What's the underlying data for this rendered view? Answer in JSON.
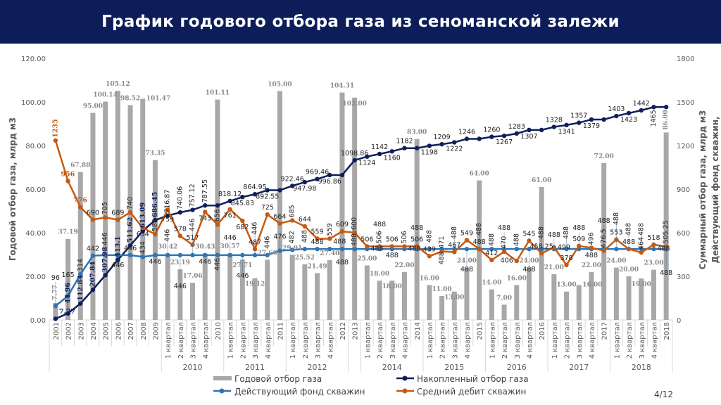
{
  "header": {
    "title": "График годового отбора газа из сеноманской залежи"
  },
  "page_number": "4/12",
  "colors": {
    "header": "#0c1d5a",
    "bars": "#a9a7a7",
    "cumulative": "#0e1f5b",
    "wells": "#2e75b6",
    "debit": "#c55a11"
  },
  "chart_data": {
    "type": "bar",
    "title": "График годового отбора газа из сеноманской залежи",
    "ylabel": "Годовой отбор газа, млрд м3",
    "y2label": "Суммарный отбор газа, млрд м3",
    "y3label": "Действующий фонд скважин,",
    "ylim": [
      0,
      120
    ],
    "y2lim": [
      0,
      1800
    ],
    "yticks": [
      "0.00",
      "20.00",
      "40.00",
      "60.00",
      "80.00",
      "100.00",
      "120.00"
    ],
    "y2ticks": [
      "0",
      "300",
      "600",
      "900",
      "1200",
      "1500",
      "1800"
    ],
    "categories": [
      "2001",
      "2002",
      "2003",
      "2004",
      "2005",
      "2006",
      "2007",
      "2008",
      "2009",
      "1 квартал",
      "2 квартал",
      "3 квартал",
      "4 квартал",
      "2010",
      "1 квартал",
      "2 квартал",
      "3 квартал",
      "4 квартал",
      "2011",
      "1 квартал",
      "2 квартал",
      "3 квартал",
      "4 квартал",
      "2012",
      "2013",
      "1 квартал",
      "2 квартал",
      "3 квартал",
      "4 квартал",
      "2014",
      "1 квартал",
      "2 квартал",
      "3 квартал",
      "4 квартал",
      "2015",
      "1 квартал",
      "2 квартал",
      "3 квартал",
      "4 квартал",
      "2016",
      "1 квартал",
      "2 квартал",
      "3 квартал",
      "4 квартал",
      "2017",
      "1 квартал",
      "2 квартал",
      "3 квартал",
      "4 квартал",
      "2018"
    ],
    "groups": [
      {
        "label": "2010",
        "start": 9,
        "end": 13
      },
      {
        "label": "2011",
        "start": 14,
        "end": 18
      },
      {
        "label": "2012",
        "start": 19,
        "end": 23
      },
      {
        "label": "2014",
        "start": 25,
        "end": 29
      },
      {
        "label": "2015",
        "start": 30,
        "end": 34
      },
      {
        "label": "2016",
        "start": 35,
        "end": 39
      },
      {
        "label": "2017",
        "start": 40,
        "end": 44
      },
      {
        "label": "2018",
        "start": 45,
        "end": 49
      }
    ],
    "legend_position": "bottom",
    "series": [
      {
        "name": "Годовой отбор газа",
        "type": "bar",
        "axis": "left",
        "values": [
          7.77,
          37.19,
          67.88,
          95.0,
          100.14,
          105.12,
          98.52,
          101.47,
          73.35,
          30.42,
          23.19,
          17.06,
          30.43,
          101.11,
          30.57,
          27.71,
          19.12,
          27.6,
          105.0,
          29.91,
          25.52,
          21.49,
          27.4,
          104.31,
          102.0,
          25.0,
          18.0,
          18.0,
          22.0,
          83.0,
          16.0,
          11.0,
          13.0,
          24.0,
          64.0,
          14.0,
          7.0,
          16.0,
          24.0,
          61.0,
          21.0,
          13.0,
          16.0,
          22.0,
          72.0,
          24.0,
          20.0,
          19.0,
          23.0,
          86.0
        ]
      },
      {
        "name": "Накопленный отбор газа",
        "type": "line",
        "axis": "right",
        "values": [
          7.77,
          44.96,
          112.84,
          207.84,
          307.98,
          413.1,
          511.62,
          613.09,
          686.45,
          716.87,
          740.06,
          757.12,
          787.55,
          787.55,
          818.12,
          845.83,
          864.95,
          892.55,
          892.55,
          922.46,
          947.98,
          969.46,
          996.86,
          996.86,
          1098.86,
          1124,
          1142,
          1160,
          1182,
          1182,
          1198,
          1209,
          1222,
          1246,
          1246,
          1260,
          1267,
          1283,
          1307,
          1307,
          1328,
          1341,
          1357,
          1379,
          1379,
          1403,
          1423,
          1442,
          1465,
          1465
        ]
      },
      {
        "name": "Действующий фонд скважин",
        "type": "line",
        "axis": "right",
        "values": [
          96,
          165,
          314,
          442,
          446,
          446,
          446,
          434,
          446,
          446,
          446,
          446,
          446,
          446,
          446,
          446,
          446,
          446,
          476,
          482,
          488,
          488,
          488,
          488,
          488,
          488,
          488,
          488,
          488,
          488,
          488,
          488,
          488,
          488,
          488,
          488,
          488,
          488,
          488,
          488,
          488,
          488,
          488,
          488,
          488,
          488,
          488,
          488,
          488,
          488
        ]
      },
      {
        "name": "Средний дебит скважин",
        "type": "line",
        "axis": "right",
        "values": [
          1235,
          956,
          776,
          690,
          705,
          689,
          740,
          634,
          589,
          759,
          578,
          517,
          743,
          656,
          761,
          682,
          487,
          725,
          664,
          685,
          644,
          559,
          559,
          609,
          600,
          506,
          506,
          506,
          506,
          506,
          439,
          471,
          467,
          549,
          488,
          412,
          470,
          406,
          545,
          458.25,
          499,
          378,
          509,
          496,
          476.5,
          553,
          488,
          464,
          518,
          505.25
        ]
      }
    ]
  }
}
